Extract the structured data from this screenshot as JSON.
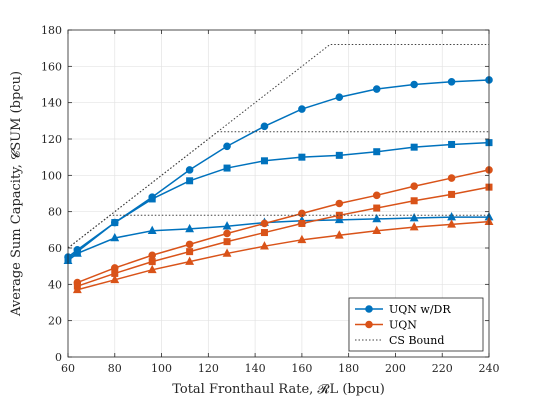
{
  "chart_data": {
    "type": "line",
    "xlabel": "Total Fronthaul Rate, 𝓡L (bpcu)",
    "ylabel": "Average Sum Capacity, 𝓒SUM (bpcu)",
    "xlim": [
      60,
      240
    ],
    "ylim": [
      0,
      180
    ],
    "xticks": [
      60,
      80,
      100,
      120,
      140,
      160,
      180,
      200,
      220,
      240
    ],
    "yticks": [
      0,
      20,
      40,
      60,
      80,
      100,
      120,
      140,
      160,
      180
    ],
    "xtick_labels": [
      "60",
      "80",
      "100",
      "120",
      "140",
      "160",
      "180",
      "200",
      "220",
      "240"
    ],
    "ytick_labels": [
      "0",
      "20",
      "40",
      "60",
      "80",
      "100",
      "120",
      "140",
      "160",
      "180"
    ],
    "grid": true,
    "legend_position": "bottom-right",
    "legend": [
      "UQN w/DR",
      "UQN",
      "CS Bound"
    ],
    "colors": {
      "dr": "#0072BD",
      "uqn": "#D95319",
      "cs": "#404040"
    },
    "series": [
      {
        "name": "UQN w/DR",
        "group": "dr",
        "marker": "circle",
        "x": [
          60,
          64,
          80,
          96,
          112,
          128,
          144,
          160,
          176,
          192,
          208,
          224,
          240
        ],
        "y": [
          55,
          59,
          74,
          88,
          103,
          116,
          127,
          136.5,
          143,
          147.5,
          150,
          151.5,
          152.5
        ]
      },
      {
        "name": "",
        "group": "dr",
        "marker": "square",
        "x": [
          60,
          64,
          80,
          96,
          112,
          128,
          144,
          160,
          176,
          192,
          208,
          224,
          240
        ],
        "y": [
          54,
          58,
          74,
          87,
          97,
          104,
          108,
          110,
          111,
          113,
          115.5,
          117,
          118
        ]
      },
      {
        "name": "",
        "group": "dr",
        "marker": "triangle",
        "x": [
          60,
          64,
          80,
          96,
          112,
          128,
          144,
          160,
          176,
          192,
          208,
          224,
          240
        ],
        "y": [
          53,
          57,
          65.5,
          69.5,
          70.5,
          72,
          74,
          75,
          75.5,
          76,
          76.5,
          77,
          77
        ]
      },
      {
        "name": "UQN",
        "group": "uqn",
        "marker": "circle",
        "x": [
          64,
          80,
          96,
          112,
          128,
          144,
          160,
          176,
          192,
          208,
          224,
          240
        ],
        "y": [
          41,
          49,
          56,
          62,
          68,
          73.5,
          79,
          84.5,
          89,
          94,
          98.5,
          103
        ]
      },
      {
        "name": "",
        "group": "uqn",
        "marker": "square",
        "x": [
          64,
          80,
          96,
          112,
          128,
          144,
          160,
          176,
          192,
          208,
          224,
          240
        ],
        "y": [
          39,
          46,
          52.5,
          58,
          63.5,
          68.5,
          73.5,
          78,
          82,
          86,
          89.5,
          93.5
        ]
      },
      {
        "name": "",
        "group": "uqn",
        "marker": "triangle",
        "x": [
          64,
          80,
          96,
          112,
          128,
          144,
          160,
          176,
          192,
          208,
          224,
          240
        ],
        "y": [
          37,
          42.5,
          48,
          52.5,
          57,
          61,
          64.5,
          67,
          69.5,
          71.5,
          73,
          74.5
        ]
      },
      {
        "name": "CS Bound",
        "group": "cs",
        "marker": "none",
        "x": [
          60,
          172,
          240
        ],
        "y": [
          60,
          172,
          172
        ]
      },
      {
        "name": "",
        "group": "cs",
        "marker": "none",
        "x": [
          60,
          124,
          240
        ],
        "y": [
          60,
          124,
          124
        ]
      },
      {
        "name": "",
        "group": "cs",
        "marker": "none",
        "x": [
          60,
          78,
          240
        ],
        "y": [
          60,
          78,
          78
        ]
      }
    ]
  }
}
